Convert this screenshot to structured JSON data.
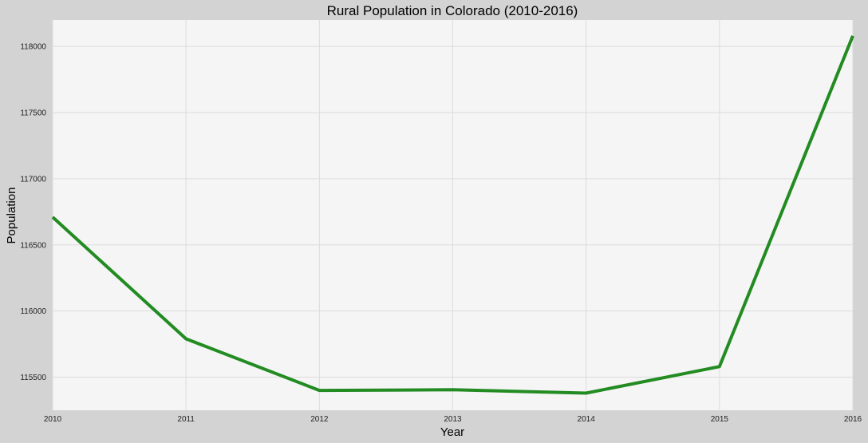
{
  "chart_data": {
    "type": "line",
    "title": "Rural Population in Colorado (2010-2016)",
    "xlabel": "Year",
    "ylabel": "Population",
    "x": [
      2010,
      2011,
      2012,
      2013,
      2014,
      2015,
      2016
    ],
    "series": [
      {
        "values": [
          116710,
          115790,
          115400,
          115405,
          115380,
          115580,
          118080
        ],
        "color": "#228b22"
      }
    ],
    "xlim": [
      2010,
      2016
    ],
    "ylim": [
      115250,
      118200
    ],
    "xticks": [
      "2010",
      "2011",
      "2012",
      "2013",
      "2014",
      "2015",
      "2016"
    ],
    "yticks": [
      115500,
      116000,
      116500,
      117000,
      117500,
      118000
    ],
    "ytick_labels": [
      "115500",
      "116000",
      "116500",
      "117000",
      "117500",
      "118000"
    ],
    "grid": true,
    "background_color": "#f5f5f5",
    "figure_color": "#d3d3d3"
  }
}
